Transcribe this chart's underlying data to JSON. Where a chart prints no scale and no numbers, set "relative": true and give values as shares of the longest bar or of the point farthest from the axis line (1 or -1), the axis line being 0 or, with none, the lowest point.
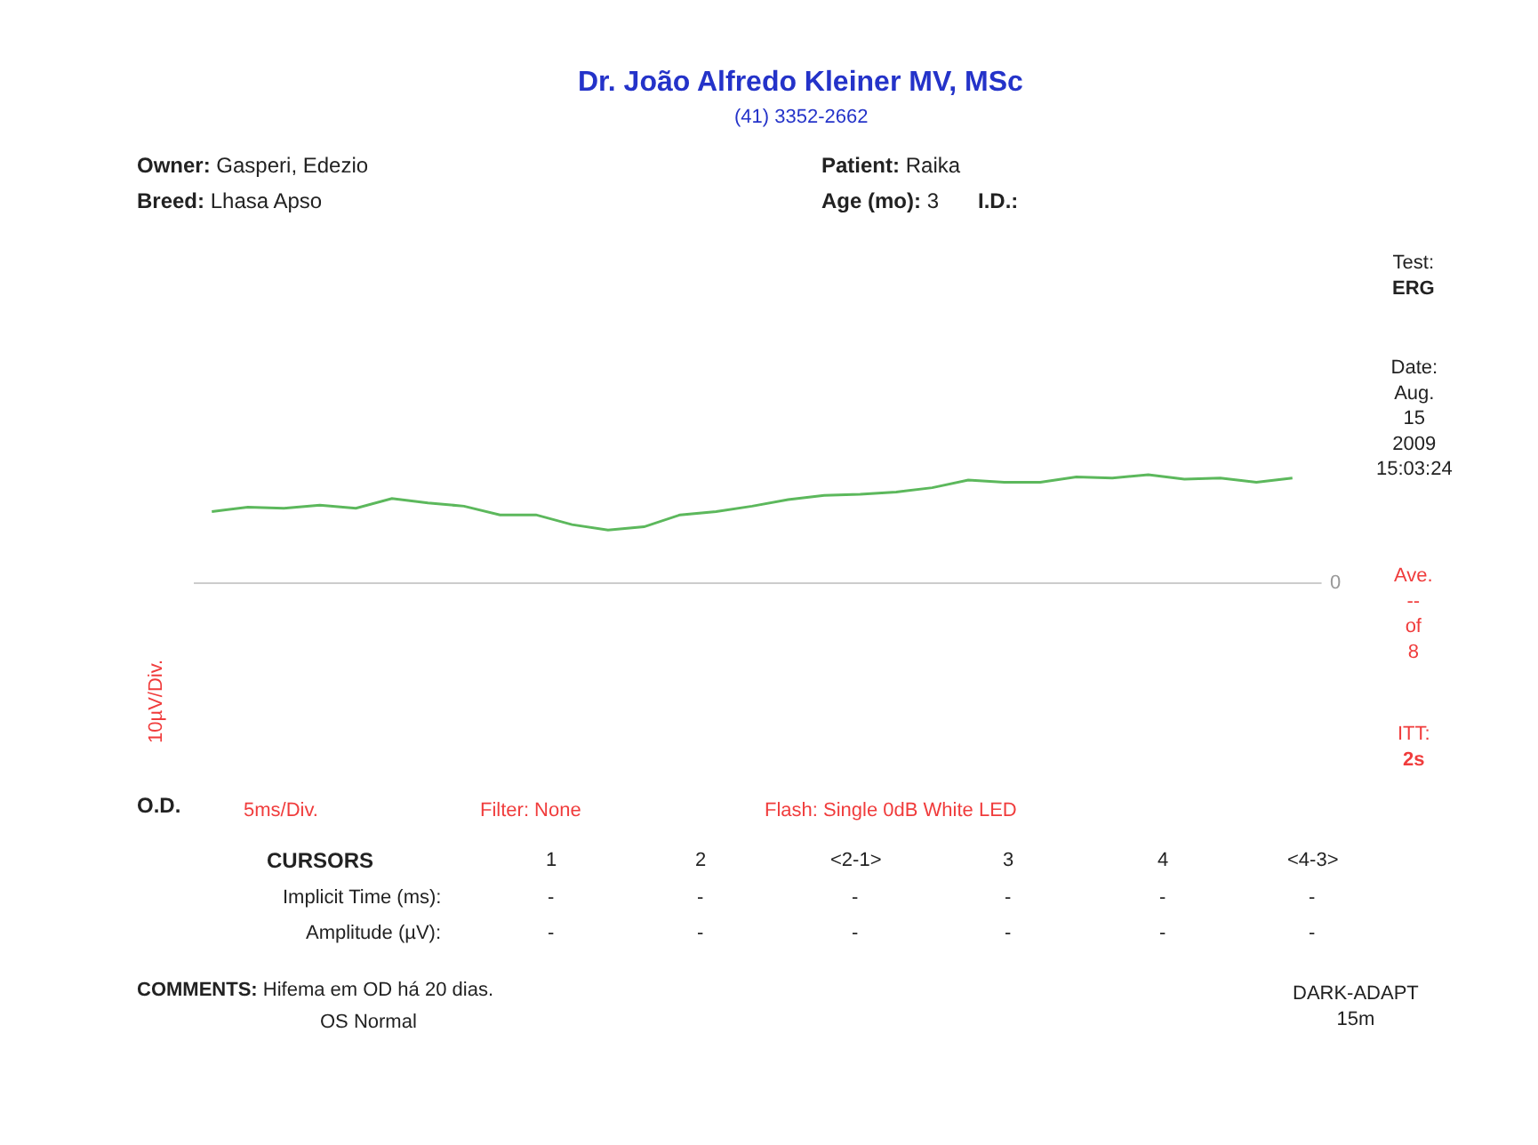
{
  "chart_data": {
    "type": "line",
    "relative": true,
    "title": "Dr. João Alfredo Kleiner MV, MSc",
    "subtitle": "(41) 3352-2662",
    "ylabel": "10µV/Div.",
    "categories": [
      null,
      null,
      null,
      null,
      null,
      null,
      null,
      null,
      null,
      null,
      null,
      null,
      null,
      null,
      null,
      null,
      null,
      null,
      null,
      null,
      null,
      null,
      null,
      null,
      null,
      null,
      null,
      null,
      null,
      null,
      null
    ],
    "series": [
      {
        "color": "#5cb85c",
        "values": [
          0.66,
          0.7,
          0.69,
          0.72,
          0.69,
          0.78,
          0.74,
          0.71,
          0.63,
          0.63,
          0.54,
          0.49,
          0.52,
          0.63,
          0.66,
          0.71,
          0.77,
          0.81,
          0.82,
          0.84,
          0.88,
          0.95,
          0.93,
          0.93,
          0.98,
          0.97,
          1.0,
          0.96,
          0.97,
          0.93,
          0.97
        ]
      }
    ],
    "ref_lines": [
      {
        "axis": "y",
        "value": 0,
        "label": "0",
        "color": "#cccccc"
      }
    ],
    "marker": "none",
    "line_style": "solid",
    "annotations": [
      "Owner: Gasperi, Edezio",
      "Patient: Raika",
      "Breed: Lhasa Apso",
      "Age (mo): 3",
      "I.D.:",
      "Test:\nERG",
      "Date:\nAug.\n15\n2009\n15:03:24",
      "Ave.\n--\nof\n8",
      "ITT:\n2s",
      "O.D.",
      "5ms/Div.",
      "Filter: None",
      "Flash: Single 0dB White LED",
      "CURSORS",
      "1",
      "2",
      "<2-1>",
      "3",
      "4",
      "<4-3>",
      "Implicit Time (ms):",
      "Amplitude (µV):",
      "-",
      "-",
      "-",
      "-",
      "-",
      "-",
      "-",
      "-",
      "-",
      "-",
      "-",
      "-",
      "COMMENTS: Hifema em OD há 20 dias.",
      "OS Normal",
      "DARK-ADAPT\n15m"
    ]
  }
}
